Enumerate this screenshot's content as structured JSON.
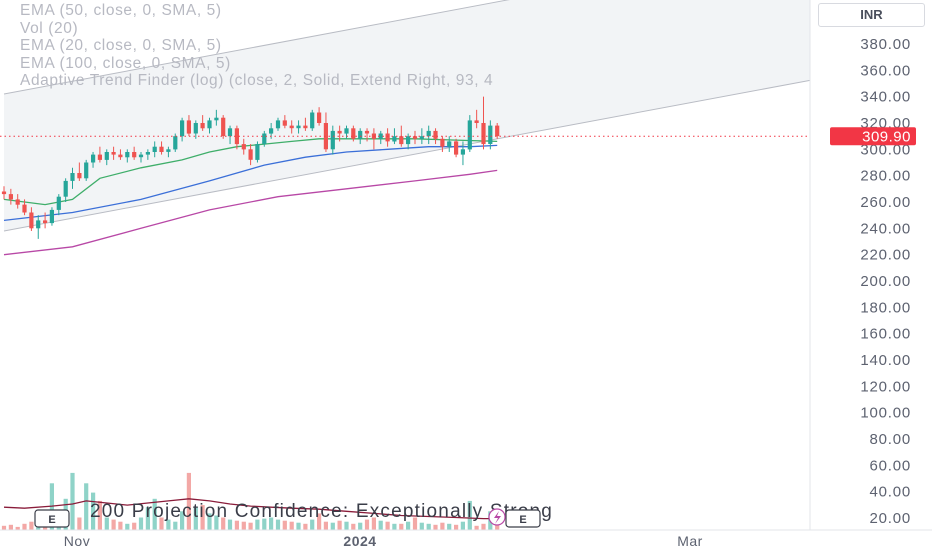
{
  "legend": {
    "line1": "EMA (50, close, 0, SMA, 5)",
    "line2": "Vol (20)",
    "line3": "EMA (20, close, 0, SMA, 5)",
    "line4": "EMA (100, close, 0, SMA, 5)",
    "line5": "Adaptive Trend Finder (log) (close, 2, Solid, Extend Right, 93, 4"
  },
  "currency": "INR",
  "price_tag": "309.90",
  "footer_text": "200 Projection Confidence: Exceptionally Strong",
  "earnings_marker": "E",
  "colors": {
    "up": "#26a69a",
    "down": "#ef5350",
    "ema20": "#3fae6a",
    "ema50": "#3b6fd8",
    "ema100": "#b848a6",
    "volume_ma": "#8a1c3a",
    "channel": "#b9bcc4",
    "price_tag": "#f23645"
  },
  "chart_data": {
    "type": "candlestick",
    "y_axis": {
      "ticks": [
        "380.00",
        "360.00",
        "340.00",
        "320.00",
        "300.00",
        "280.00",
        "260.00",
        "240.00",
        "220.00",
        "200.00",
        "180.00",
        "160.00",
        "140.00",
        "120.00",
        "100.00",
        "80.00",
        "60.00",
        "40.00",
        "20.00"
      ]
    },
    "x_axis": {
      "ticks": [
        "Nov",
        "2024",
        "Mar"
      ]
    },
    "ylim": [
      15,
      395
    ],
    "last_price": 309.9,
    "candles": [
      [
        268,
        272,
        262,
        266
      ],
      [
        266,
        270,
        258,
        262
      ],
      [
        262,
        266,
        255,
        258
      ],
      [
        258,
        262,
        250,
        252
      ],
      [
        252,
        256,
        238,
        240
      ],
      [
        240,
        250,
        232,
        246
      ],
      [
        246,
        252,
        240,
        244
      ],
      [
        244,
        256,
        242,
        254
      ],
      [
        254,
        266,
        250,
        264
      ],
      [
        264,
        278,
        260,
        276
      ],
      [
        276,
        286,
        270,
        282
      ],
      [
        282,
        290,
        276,
        278
      ],
      [
        278,
        292,
        276,
        290
      ],
      [
        290,
        298,
        286,
        296
      ],
      [
        296,
        302,
        290,
        292
      ],
      [
        292,
        300,
        288,
        298
      ],
      [
        298,
        302,
        292,
        296
      ],
      [
        296,
        300,
        292,
        294
      ],
      [
        294,
        300,
        290,
        298
      ],
      [
        298,
        302,
        292,
        294
      ],
      [
        294,
        298,
        290,
        296
      ],
      [
        296,
        300,
        292,
        298
      ],
      [
        298,
        306,
        294,
        302
      ],
      [
        302,
        306,
        296,
        298
      ],
      [
        298,
        302,
        294,
        300
      ],
      [
        300,
        312,
        298,
        310
      ],
      [
        310,
        324,
        306,
        322
      ],
      [
        322,
        326,
        310,
        312
      ],
      [
        312,
        322,
        308,
        320
      ],
      [
        320,
        326,
        314,
        316
      ],
      [
        316,
        324,
        312,
        322
      ],
      [
        322,
        330,
        318,
        324
      ],
      [
        324,
        326,
        308,
        310
      ],
      [
        310,
        318,
        304,
        316
      ],
      [
        316,
        318,
        300,
        304
      ],
      [
        304,
        308,
        296,
        300
      ],
      [
        300,
        304,
        288,
        292
      ],
      [
        292,
        306,
        290,
        304
      ],
      [
        304,
        314,
        302,
        312
      ],
      [
        312,
        320,
        308,
        316
      ],
      [
        316,
        324,
        314,
        322
      ],
      [
        322,
        326,
        316,
        318
      ],
      [
        318,
        322,
        312,
        316
      ],
      [
        316,
        322,
        312,
        318
      ],
      [
        318,
        324,
        314,
        316
      ],
      [
        316,
        330,
        314,
        328
      ],
      [
        328,
        332,
        318,
        320
      ],
      [
        320,
        328,
        298,
        300
      ],
      [
        300,
        318,
        296,
        314
      ],
      [
        314,
        318,
        306,
        312
      ],
      [
        312,
        318,
        308,
        316
      ],
      [
        316,
        318,
        306,
        308
      ],
      [
        308,
        316,
        304,
        314
      ],
      [
        314,
        316,
        306,
        312
      ],
      [
        312,
        316,
        300,
        308
      ],
      [
        308,
        314,
        304,
        312
      ],
      [
        312,
        316,
        302,
        306
      ],
      [
        306,
        316,
        304,
        310
      ],
      [
        310,
        318,
        302,
        304
      ],
      [
        304,
        312,
        300,
        310
      ],
      [
        310,
        314,
        304,
        308
      ],
      [
        308,
        316,
        304,
        310
      ],
      [
        310,
        318,
        304,
        314
      ],
      [
        314,
        316,
        304,
        308
      ],
      [
        308,
        310,
        298,
        302
      ],
      [
        302,
        310,
        298,
        306
      ],
      [
        306,
        308,
        294,
        296
      ],
      [
        296,
        306,
        288,
        300
      ],
      [
        300,
        326,
        298,
        322
      ],
      [
        322,
        330,
        316,
        320
      ],
      [
        320,
        340,
        300,
        304
      ],
      [
        304,
        322,
        300,
        318
      ],
      [
        318,
        320,
        308,
        310
      ]
    ],
    "ema20": [
      [
        0,
        262
      ],
      [
        6,
        258
      ],
      [
        10,
        262
      ],
      [
        14,
        278
      ],
      [
        20,
        286
      ],
      [
        26,
        292
      ],
      [
        30,
        298
      ],
      [
        34,
        302
      ],
      [
        38,
        304
      ],
      [
        42,
        306
      ],
      [
        46,
        308
      ],
      [
        50,
        308
      ],
      [
        56,
        308
      ],
      [
        60,
        308
      ],
      [
        66,
        307
      ],
      [
        72,
        306
      ]
    ],
    "ema50": [
      [
        0,
        246
      ],
      [
        10,
        252
      ],
      [
        20,
        262
      ],
      [
        30,
        276
      ],
      [
        38,
        288
      ],
      [
        44,
        294
      ],
      [
        50,
        298
      ],
      [
        56,
        300
      ],
      [
        62,
        302
      ],
      [
        68,
        302
      ],
      [
        72,
        303
      ]
    ],
    "ema100": [
      [
        0,
        220
      ],
      [
        10,
        226
      ],
      [
        20,
        240
      ],
      [
        30,
        254
      ],
      [
        40,
        264
      ],
      [
        50,
        270
      ],
      [
        60,
        276
      ],
      [
        68,
        281
      ],
      [
        72,
        284
      ]
    ],
    "channel": {
      "upper": [
        [
          0,
          342
        ],
        [
          72,
          412
        ]
      ],
      "lower": [
        [
          0,
          238
        ],
        [
          72,
          308
        ]
      ]
    },
    "volume": [
      4,
      5,
      3,
      6,
      8,
      6,
      10,
      45,
      12,
      30,
      55,
      12,
      45,
      36,
      28,
      12,
      10,
      8,
      6,
      7,
      12,
      22,
      30,
      12,
      10,
      8,
      18,
      55,
      22,
      24,
      16,
      14,
      12,
      10,
      9,
      8,
      7,
      10,
      11,
      12,
      10,
      9,
      8,
      7,
      6,
      10,
      16,
      8,
      7,
      9,
      8,
      6,
      7,
      10,
      12,
      9,
      8,
      6,
      6,
      8,
      12,
      7,
      6,
      5,
      7,
      6,
      5,
      8,
      28,
      4,
      6,
      18,
      12
    ],
    "volume_ma": [
      [
        0,
        22
      ],
      [
        3,
        21
      ],
      [
        7,
        23
      ],
      [
        10,
        25
      ],
      [
        12,
        28
      ],
      [
        15,
        26
      ],
      [
        18,
        24
      ],
      [
        21,
        26
      ],
      [
        24,
        28
      ],
      [
        27,
        30
      ],
      [
        30,
        28
      ],
      [
        33,
        25
      ],
      [
        36,
        23
      ],
      [
        39,
        22
      ],
      [
        42,
        21
      ],
      [
        46,
        20
      ],
      [
        50,
        18
      ],
      [
        54,
        16
      ],
      [
        58,
        14
      ],
      [
        62,
        13
      ],
      [
        66,
        12
      ],
      [
        70,
        11
      ],
      [
        72,
        11
      ]
    ],
    "volume_ylim": [
      0,
      130
    ]
  }
}
